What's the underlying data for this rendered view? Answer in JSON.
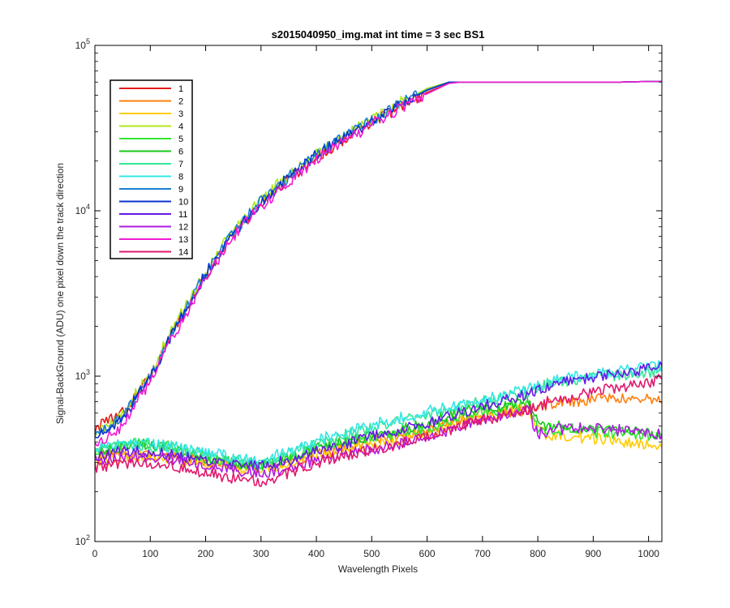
{
  "chart_data": {
    "type": "line",
    "title": "s2015040950_img.mat int time = 3 sec   BS1",
    "xlabel": "Wavelength Pixels",
    "ylabel": "Signal-BackGround (ADU) one pixel down the track direction",
    "xlim": [
      0,
      1024
    ],
    "ylim": [
      100,
      100000
    ],
    "yscale": "log",
    "x_ticks": [
      0,
      100,
      200,
      300,
      400,
      500,
      600,
      700,
      800,
      900,
      1000
    ],
    "y_ticks": [
      {
        "value": 100,
        "base": "10",
        "exp": "2"
      },
      {
        "value": 1000,
        "base": "10",
        "exp": "3"
      },
      {
        "value": 10000,
        "base": "10",
        "exp": "4"
      },
      {
        "value": 100000,
        "base": "10",
        "exp": "5"
      }
    ],
    "legend_position": "top-left",
    "x": [
      0,
      50,
      100,
      150,
      200,
      250,
      300,
      350,
      400,
      450,
      500,
      550,
      600,
      640,
      660,
      700,
      750,
      780,
      800,
      820,
      850,
      900,
      950,
      1000,
      1024
    ],
    "series": [
      {
        "name": "1",
        "color": "#e41a1a",
        "values": [
          480,
          600,
          1000,
          2100,
          4100,
          7200,
          11000,
          15500,
          21000,
          27000,
          34000,
          42000,
          52000,
          59000,
          60000,
          60000,
          60000,
          60000,
          60000,
          60000,
          60000,
          60000,
          60000,
          60500,
          60500
        ]
      },
      {
        "name": "2",
        "color": "#ff7f0e",
        "values": [
          320,
          340,
          340,
          320,
          310,
          290,
          280,
          300,
          340,
          370,
          400,
          440,
          480,
          520,
          540,
          570,
          600,
          620,
          660,
          680,
          700,
          720,
          730,
          720,
          690
        ]
      },
      {
        "name": "3",
        "color": "#ffcc00",
        "values": [
          300,
          320,
          330,
          310,
          300,
          280,
          270,
          290,
          330,
          360,
          380,
          410,
          450,
          500,
          540,
          580,
          620,
          650,
          480,
          440,
          430,
          420,
          400,
          380,
          370
        ]
      },
      {
        "name": "4",
        "color": "#b2e61a",
        "values": [
          440,
          590,
          1060,
          2200,
          4300,
          7600,
          11800,
          16500,
          22500,
          28500,
          36000,
          45000,
          55000,
          60000,
          60000,
          60000,
          60000,
          60000,
          60000,
          60000,
          60000,
          60000,
          60000,
          60500,
          60500
        ]
      },
      {
        "name": "5",
        "color": "#33e633",
        "values": [
          350,
          380,
          400,
          360,
          330,
          300,
          290,
          320,
          370,
          400,
          420,
          440,
          480,
          530,
          560,
          600,
          650,
          680,
          490,
          480,
          470,
          460,
          450,
          440,
          430
        ]
      },
      {
        "name": "6",
        "color": "#1ac81a",
        "values": [
          340,
          370,
          390,
          350,
          320,
          300,
          290,
          320,
          370,
          400,
          430,
          470,
          520,
          580,
          610,
          640,
          680,
          720,
          520,
          500,
          490,
          480,
          470,
          450,
          440
        ]
      },
      {
        "name": "7",
        "color": "#33e699",
        "values": [
          360,
          380,
          380,
          360,
          340,
          310,
          300,
          340,
          390,
          440,
          490,
          540,
          590,
          630,
          650,
          700,
          760,
          800,
          860,
          900,
          940,
          980,
          1020,
          1060,
          1080
        ]
      },
      {
        "name": "8",
        "color": "#33e6e6",
        "values": [
          370,
          390,
          390,
          370,
          350,
          320,
          310,
          350,
          410,
          460,
          510,
          560,
          610,
          650,
          680,
          730,
          790,
          830,
          880,
          920,
          970,
          1020,
          1080,
          1130,
          1150
        ]
      },
      {
        "name": "9",
        "color": "#1a7fd4",
        "values": [
          430,
          560,
          1000,
          2100,
          4200,
          7400,
          11500,
          16000,
          22000,
          28000,
          35000,
          44000,
          54000,
          60000,
          60000,
          60000,
          60000,
          60000,
          60000,
          60000,
          60000,
          60000,
          60000,
          60500,
          60500
        ]
      },
      {
        "name": "10",
        "color": "#0a33cc",
        "values": [
          420,
          550,
          990,
          2080,
          4150,
          7300,
          11300,
          15800,
          21800,
          27800,
          34500,
          43500,
          53500,
          60000,
          60000,
          60000,
          60000,
          60000,
          60000,
          60000,
          60000,
          60000,
          60000,
          60500,
          60500
        ]
      },
      {
        "name": "11",
        "color": "#6619e6",
        "values": [
          330,
          350,
          350,
          330,
          310,
          290,
          285,
          310,
          350,
          390,
          430,
          470,
          520,
          570,
          600,
          660,
          730,
          780,
          840,
          880,
          930,
          990,
          1050,
          1110,
          1150
        ]
      },
      {
        "name": "12",
        "color": "#b21ae6",
        "values": [
          300,
          320,
          320,
          310,
          290,
          270,
          260,
          280,
          310,
          340,
          360,
          390,
          430,
          470,
          500,
          550,
          600,
          630,
          450,
          470,
          480,
          490,
          470,
          450,
          440
        ]
      },
      {
        "name": "13",
        "color": "#f01ad2",
        "values": [
          380,
          500,
          940,
          1950,
          3900,
          6900,
          10700,
          15000,
          20500,
          26500,
          33000,
          41500,
          51000,
          59000,
          60000,
          60000,
          60000,
          60000,
          60000,
          60000,
          60000,
          60000,
          60000,
          60500,
          60500
        ]
      },
      {
        "name": "14",
        "color": "#e0196e",
        "values": [
          280,
          300,
          300,
          280,
          260,
          240,
          230,
          260,
          300,
          330,
          360,
          390,
          430,
          470,
          500,
          540,
          590,
          620,
          660,
          700,
          740,
          800,
          860,
          920,
          960
        ]
      }
    ]
  }
}
